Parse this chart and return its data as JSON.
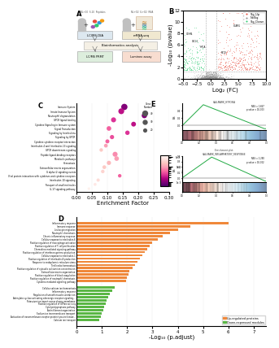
{
  "panel_A": {
    "label": "A"
  },
  "panel_B": {
    "label": "B",
    "xlabel": "Log₂ (FC)",
    "ylabel": "-Log₁₀ (pvalue)",
    "legend": [
      "Sig_Up",
      "NoSig",
      "Sig_Down"
    ],
    "legend_colors": [
      "#e74c3c",
      "#808080",
      "#2ecc71"
    ],
    "xlim": [
      -5,
      10
    ],
    "ylim": [
      0,
      12
    ],
    "hline_y": 1.3,
    "vline_x1": -1,
    "vline_x2": 1
  },
  "panel_C": {
    "label": "C",
    "xlabel": "Enrichment Factor",
    "categories": [
      "Immune System",
      "Innate Immune System",
      "Neutrophil degranulation",
      "GPCR ligand binding",
      "Cytokine Signaling in Immune system",
      "Signal Transduction",
      "Signaling by Interleukins",
      "Signaling by GPCR",
      "Cytokine-cytokine receptor interaction",
      "Interleukin-4 and Interleukin-13 signaling",
      "GPCR downstream signaling",
      "Peptide ligand-binding receptors",
      "Metabolic pathways",
      "Hemostasis",
      "Extracellular matrix organization",
      "G alpha i2 signaling events",
      "Viral protein interaction with cytokines and cytokine receptors",
      "Interleukin-10 signaling",
      "Transport of small molecules",
      "IL-17 signaling pathway"
    ],
    "enrichment_values": [
      0.155,
      0.145,
      0.22,
      0.12,
      0.185,
      0.105,
      0.165,
      0.115,
      0.1,
      0.095,
      0.08,
      0.125,
      0.13,
      0.105,
      0.09,
      0.085,
      0.14,
      0.07,
      0.06,
      0.04
    ],
    "dot_sizes": [
      44,
      38,
      32,
      28,
      26,
      24,
      22,
      20,
      18,
      16,
      14,
      28,
      24,
      20,
      16,
      14,
      14,
      12,
      10,
      8
    ],
    "dot_pvalues": [
      0.001,
      0.002,
      0.001,
      0.003,
      0.002,
      0.005,
      0.003,
      0.004,
      0.005,
      0.01,
      0.02,
      0.008,
      0.01,
      0.015,
      0.02,
      0.025,
      0.005,
      0.03,
      0.04,
      0.05
    ],
    "colorbar_label": "p.value",
    "size_legend_values": [
      20,
      30,
      40
    ],
    "size_legend_labels": [
      "20",
      "30",
      "40"
    ]
  },
  "panel_D": {
    "label": "D",
    "xlabel": "-Log₁₀ (p.adjust)",
    "orange_categories": [
      "Inflammatory response",
      "Immune response",
      "Leukocyte migration",
      "Neutrophil chemotaxis",
      "Chronic inflammatory response",
      "Cellular response to interleukin-6",
      "Positive regulation of macrophage activation",
      "Positive regulation of T cell proliferation",
      "Chemokine-mediated signaling pathway",
      "Positive regulation of interferon-gamma production",
      "Cellular response to interleukin-1",
      "Positive regulation of interleukin-8 production",
      "Response to endoplasmic reticulum stress",
      "T cell redox homeostasis",
      "Positive regulation of cytosolic calcium ion concentration",
      "Extracellular matrix organization",
      "Positive regulation of blood coagulation",
      "Positive regulation of neutrophil chemotaxis",
      "Cytokine-mediated signaling pathway"
    ],
    "orange_values": [
      6.0,
      4.5,
      4.0,
      3.7,
      3.4,
      3.2,
      3.0,
      2.9,
      2.8,
      2.7,
      2.6,
      2.5,
      2.4,
      2.3,
      2.2,
      2.1,
      2.05,
      2.0,
      1.95
    ],
    "green_categories": [
      "Cellular calcium ion homeostasis",
      "Inflammatory response",
      "Regulation of smooth muscle contraction",
      "Adenylate cyclase-activating adrenergic receptor signaling...",
      "Potassium ion import across plasma membrane",
      "Positive regulation of GTPase activity",
      "Cytolysis/pyroptosis pathway",
      "Actin filament organization",
      "Sodium ion transmembrane transport",
      "Activation of transmembrane receptor protein tyrosine kinase...",
      "Calcium ion transport"
    ],
    "green_values": [
      1.5,
      1.4,
      1.3,
      1.25,
      1.2,
      1.15,
      1.1,
      1.05,
      1.0,
      0.95,
      0.9
    ],
    "orange_color": "#f0883a",
    "green_color": "#5ab745",
    "legend_up": "Up-regulated proteins",
    "legend_down": "Down-expressed modules"
  },
  "panel_E": {
    "label": "E",
    "plot1_subtitle": "Enrichment plot: HALLMARK_HYPOXIA",
    "plot1_nes": "NES = 1.667",
    "plot1_pvalue": "p value < 1E-003",
    "plot2_subtitle": "Enrichment plot:\nHALLMARK_INFLAMMATORY_RESPONSE",
    "plot2_nes": "NES = 1.290",
    "plot2_pvalue": "p value < 1E-002"
  },
  "background_color": "#ffffff",
  "panel_label_fontsize": 6,
  "tick_fontsize": 4,
  "axis_label_fontsize": 5
}
